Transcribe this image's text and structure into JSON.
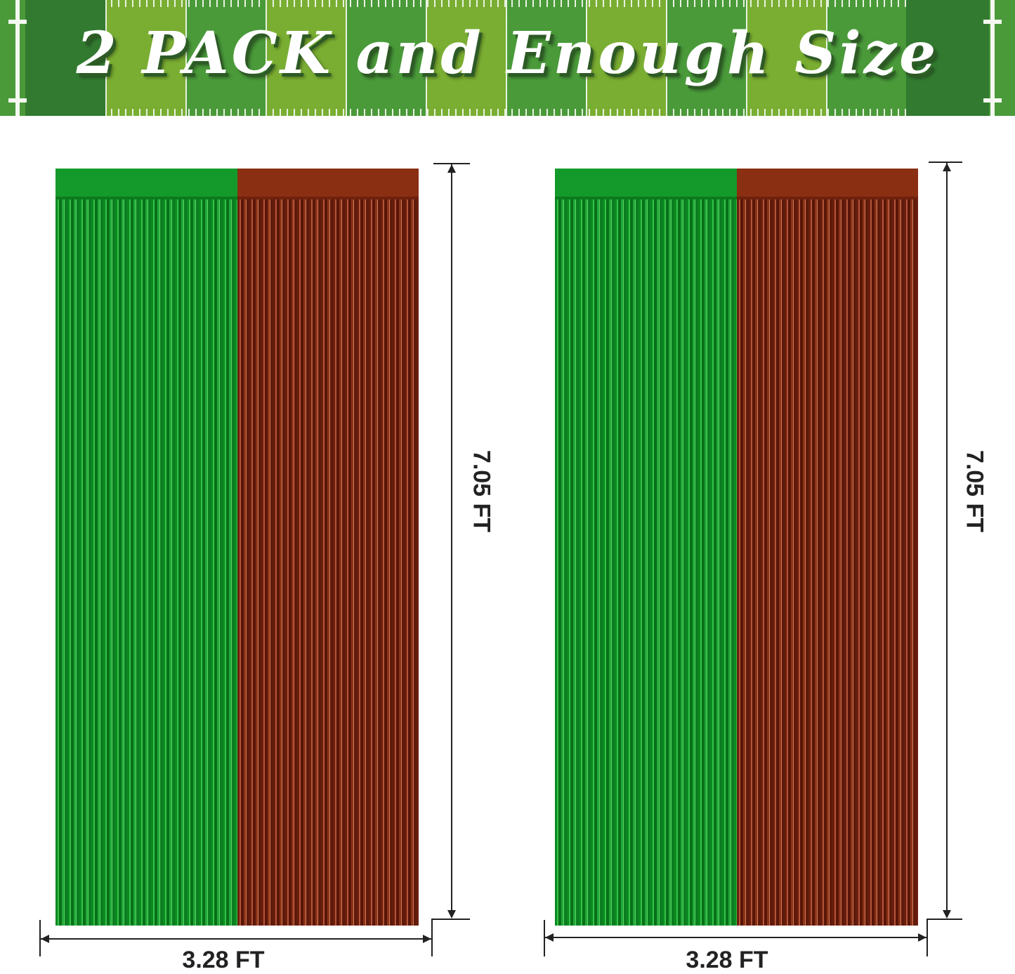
{
  "banner": {
    "title": "2 PACK and Enough Size"
  },
  "colors": {
    "green": "#139a2a",
    "brown": "#8a2f12",
    "field_light": "#7aae32",
    "field_dark": "#4a9a3a"
  },
  "products": [
    {
      "height_label": "7.05 FT",
      "width_label": "3.28 FT"
    },
    {
      "height_label": "7.05 FT",
      "width_label": "3.28 FT"
    }
  ]
}
